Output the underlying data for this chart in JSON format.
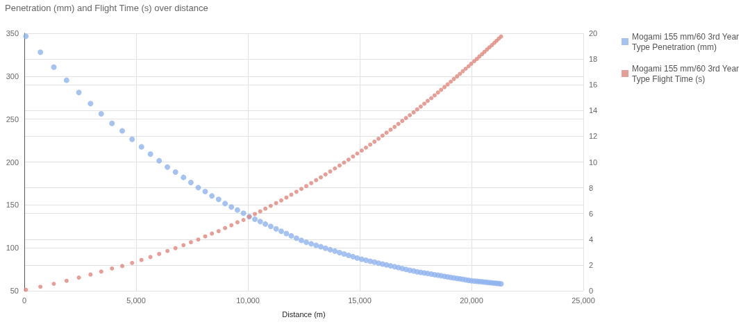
{
  "chart_data": {
    "type": "scatter",
    "title": "Penetration (mm) and Flight Time (s) over distance",
    "xlabel": "Distance (m)",
    "x": [
      70,
      720,
      1320,
      1890,
      2440,
      2960,
      3440,
      3920,
      4380,
      4820,
      5240,
      5640,
      6030,
      6400,
      6760,
      7120,
      7450,
      7780,
      8090,
      8390,
      8690,
      8980,
      9260,
      9530,
      9800,
      10060,
      10310,
      10550,
      10780,
      11020,
      11260,
      11490,
      11720,
      11940,
      12170,
      12390,
      12610,
      12830,
      13050,
      13260,
      13470,
      13680,
      13890,
      14100,
      14300,
      14500,
      14700,
      14890,
      15090,
      15280,
      15470,
      15660,
      15840,
      16020,
      16200,
      16380,
      16560,
      16730,
      16900,
      17070,
      17240,
      17410,
      17570,
      17730,
      17890,
      18040,
      18200,
      18350,
      18500,
      18640,
      18790,
      18930,
      19070,
      19210,
      19350,
      19480,
      19610,
      19740,
      19870,
      19990,
      20120,
      20240,
      20350,
      20470,
      20580,
      20690,
      20800,
      20910,
      21020,
      21120,
      21220,
      21320
    ],
    "series": [
      {
        "name": "Mogami 155 mm/60 3rd Year Type Penetration (mm)",
        "color": "#8fb3ee",
        "values": [
          346.5,
          327.9,
          310.6,
          295.3,
          281,
          268.1,
          256.2,
          245.1,
          236.3,
          226.5,
          217.7,
          209.3,
          201.5,
          194.2,
          188.3,
          182.1,
          176.1,
          170.2,
          165.6,
          160.5,
          156.5,
          151.6,
          147.6,
          144.1,
          140.3,
          136.3,
          133.4,
          130.6,
          127.7,
          125,
          122.2,
          119.4,
          116.7,
          114,
          111.3,
          108.7,
          106.5,
          104.7,
          103,
          101.3,
          99.5,
          97.8,
          96.2,
          94.5,
          92.9,
          91.3,
          89.7,
          88.1,
          86.7,
          85.6,
          84.4,
          83.3,
          82.2,
          81.1,
          80.1,
          79,
          78,
          77,
          75.9,
          74.9,
          73.9,
          73,
          72.1,
          71.4,
          70.7,
          70.1,
          69.4,
          68.7,
          68.1,
          67.5,
          66.8,
          66.2,
          65.6,
          65,
          64.4,
          63.9,
          63.3,
          62.7,
          62.2,
          61.6,
          61.3,
          61,
          60.7,
          60.4,
          60.1,
          59.8,
          59.5,
          59.2,
          58.9,
          58.6,
          58.4,
          58.1
        ]
      },
      {
        "name": "Mogami 155 mm/60 3rd Year Type Flight Time (s)",
        "color": "#e0867c",
        "axis": "y2",
        "values": [
          0.07,
          0.31,
          0.54,
          0.77,
          1.02,
          1.26,
          1.49,
          1.73,
          1.92,
          2.16,
          2.39,
          2.62,
          2.86,
          3.09,
          3.31,
          3.54,
          3.77,
          3.98,
          4.22,
          4.44,
          4.63,
          4.87,
          5.09,
          5.32,
          5.5,
          5.75,
          5.96,
          6.17,
          6.38,
          6.59,
          6.81,
          7.02,
          7.24,
          7.46,
          7.69,
          7.91,
          8.13,
          8.36,
          8.59,
          8.81,
          9.04,
          9.27,
          9.5,
          9.73,
          9.96,
          10.19,
          10.43,
          10.66,
          10.89,
          11.12,
          11.35,
          11.58,
          11.81,
          12.05,
          12.28,
          12.51,
          12.73,
          12.96,
          13.19,
          13.42,
          13.64,
          13.86,
          14.09,
          14.31,
          14.53,
          14.75,
          14.96,
          15.18,
          15.4,
          15.61,
          15.82,
          16.03,
          16.24,
          16.45,
          16.65,
          16.85,
          17.05,
          17.25,
          17.44,
          17.64,
          17.83,
          18.01,
          18.2,
          18.38,
          18.56,
          18.74,
          18.91,
          19.08,
          19.26,
          19.42,
          19.59,
          19.75
        ]
      }
    ],
    "xlim": [
      0,
      25000
    ],
    "xticks": [
      0,
      {
        "value": 5000,
        "label": "5,000"
      },
      {
        "value": 10000,
        "label": "10,000"
      },
      {
        "value": 15000,
        "label": "15,000"
      },
      {
        "value": 20000,
        "label": "20,000"
      },
      {
        "value": 25000,
        "label": "25,000"
      }
    ],
    "ylim": [
      50,
      350
    ],
    "yticks": [
      50,
      100,
      150,
      200,
      250,
      300,
      350
    ],
    "y2lim": [
      0,
      20
    ],
    "y2ticks": [
      0,
      2,
      4,
      6,
      8,
      10,
      12,
      14,
      16,
      18,
      20
    ],
    "grid": true,
    "legend": "right",
    "marker": "circle"
  }
}
